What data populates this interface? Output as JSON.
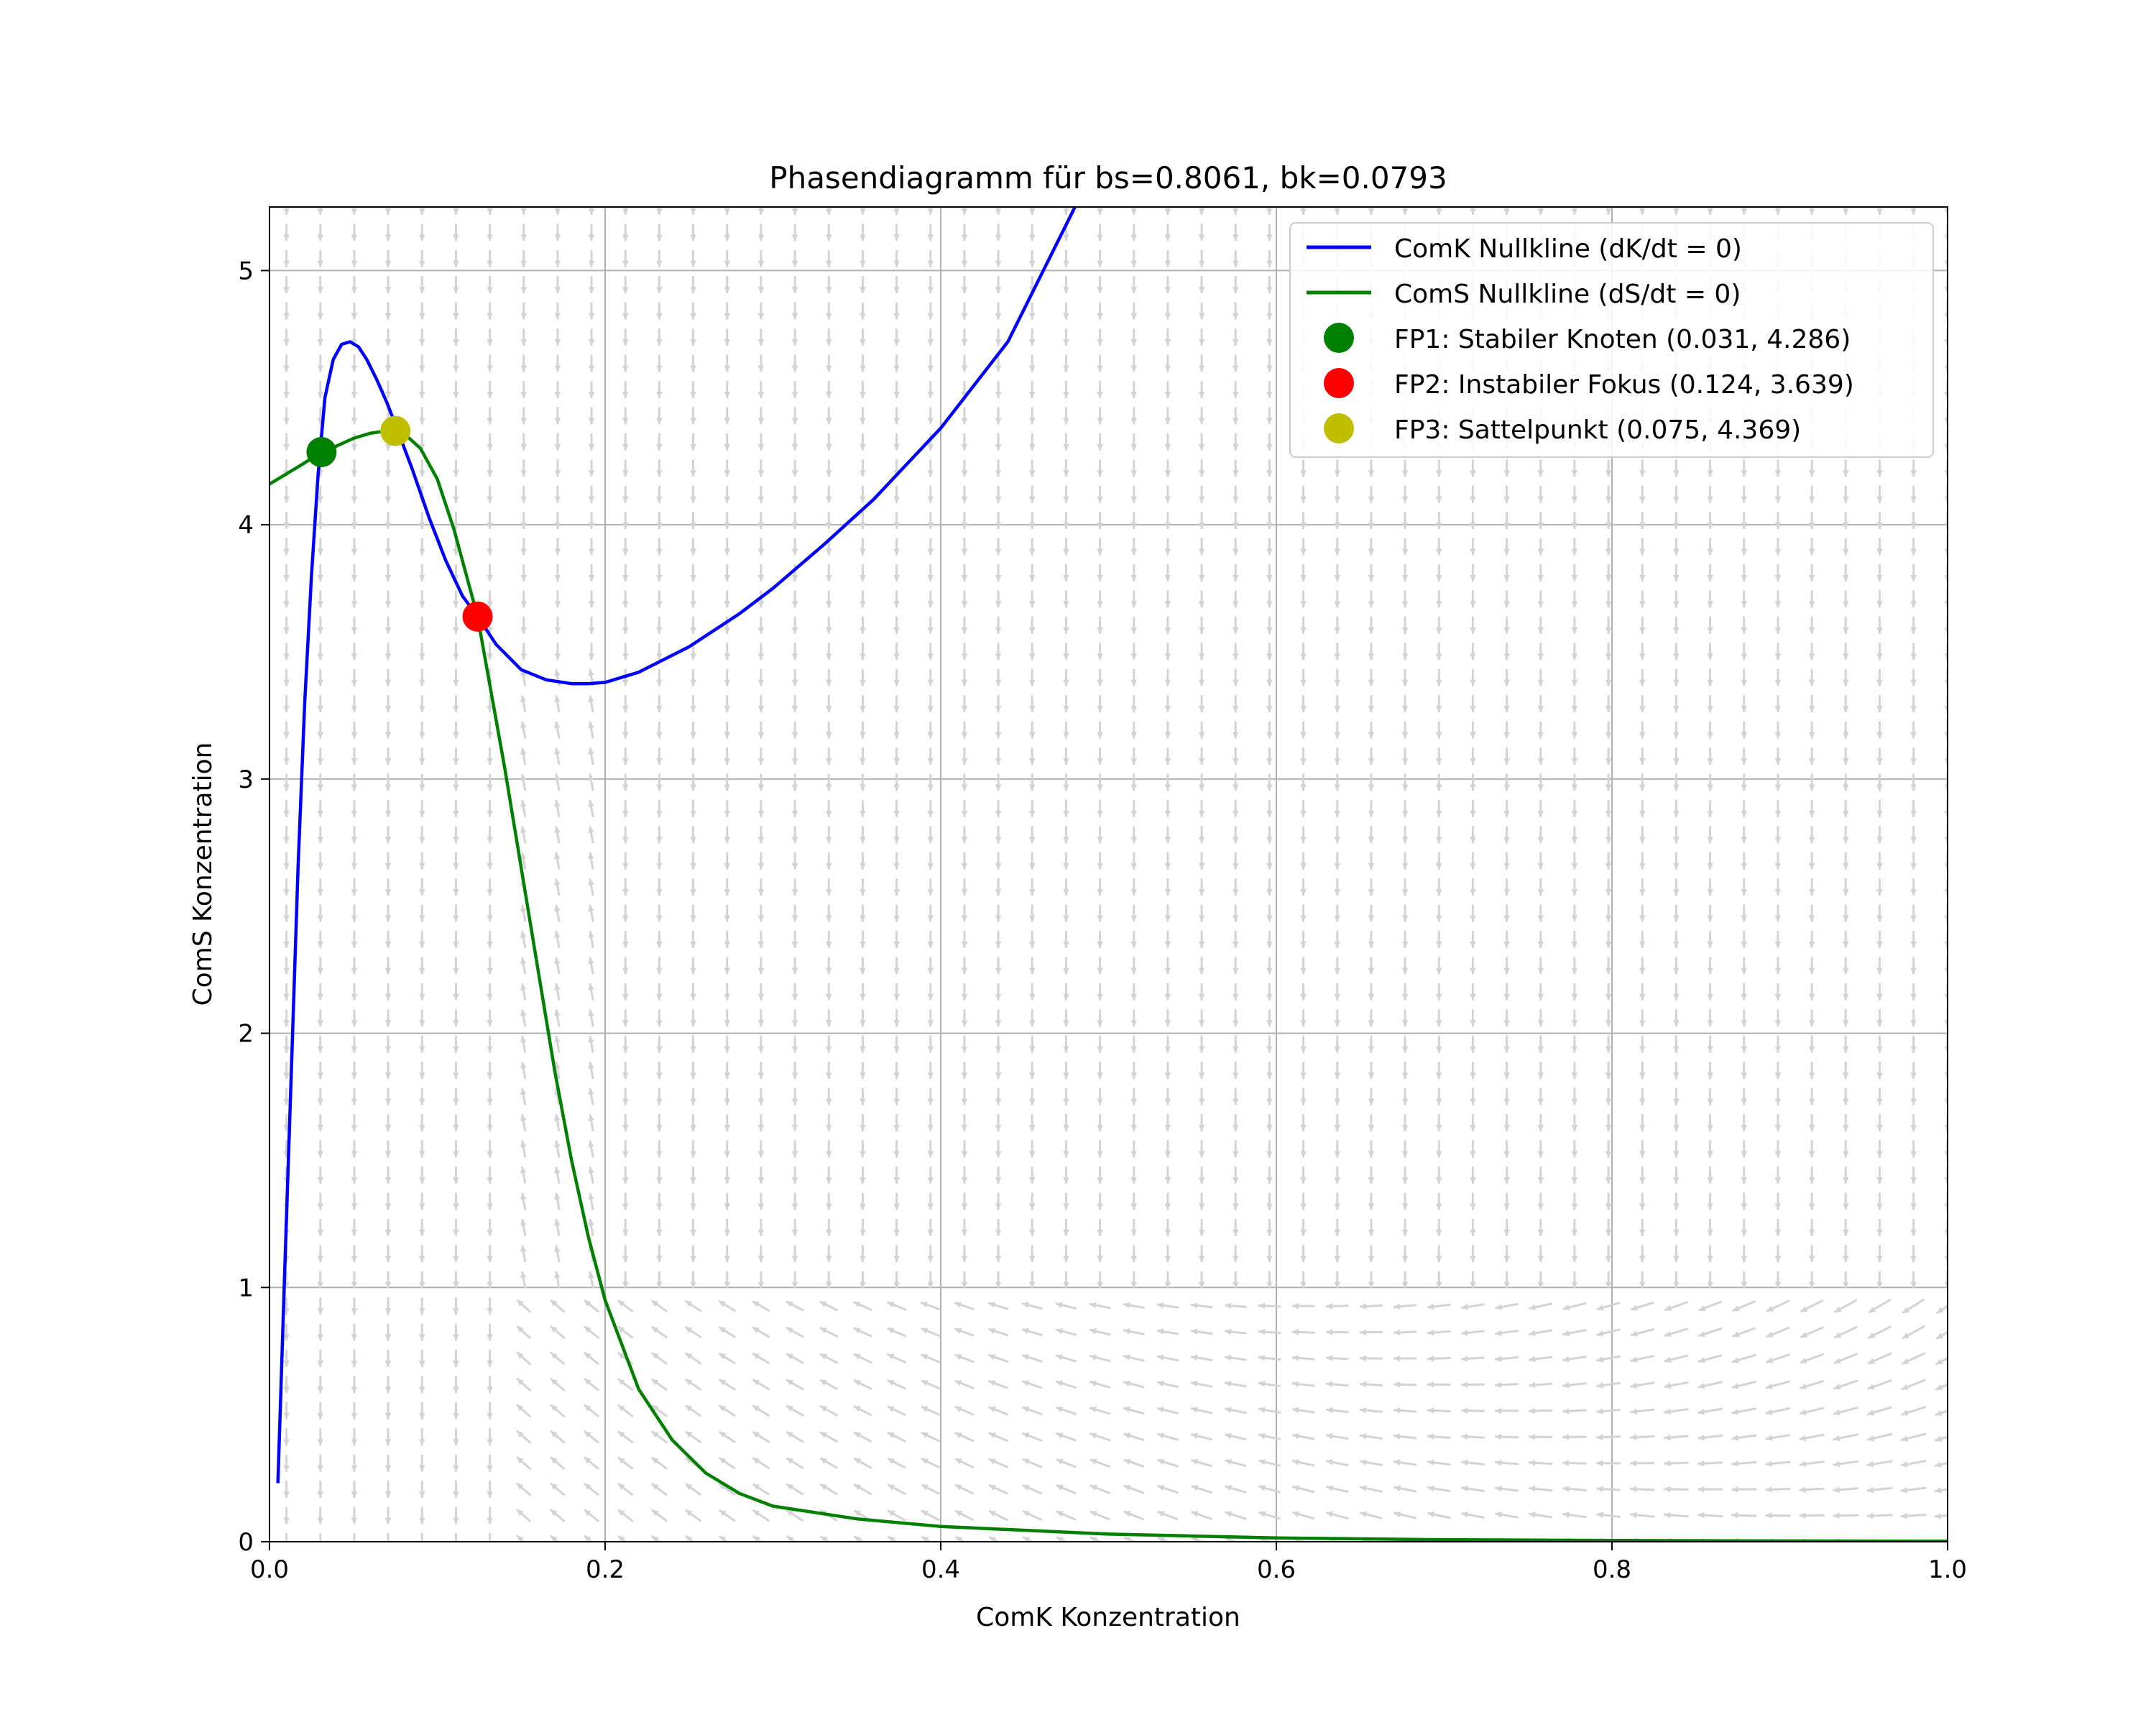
{
  "chart_data": {
    "type": "line",
    "title": "Phasendiagramm für bs=0.8061, bk=0.0793",
    "xlabel": "ComK Konzentration",
    "ylabel": "ComS Konzentration",
    "xlim": [
      0.0,
      1.0
    ],
    "ylim": [
      0,
      5.25
    ],
    "xticks": [
      "0.0",
      "0.2",
      "0.4",
      "0.6",
      "0.8",
      "1.0"
    ],
    "yticks": [
      "0",
      "1",
      "2",
      "3",
      "4",
      "5"
    ],
    "grid": true,
    "legend_position": "top-right",
    "series": [
      {
        "name": "ComK Nullkline (dK/dt = 0)",
        "color": "#0000ff",
        "kind": "line",
        "x": [
          0.005,
          0.009,
          0.013,
          0.017,
          0.021,
          0.025,
          0.029,
          0.033,
          0.038,
          0.043,
          0.048,
          0.053,
          0.058,
          0.064,
          0.07,
          0.077,
          0.085,
          0.095,
          0.105,
          0.115,
          0.124,
          0.135,
          0.15,
          0.165,
          0.18,
          0.19,
          0.2,
          0.22,
          0.25,
          0.28,
          0.3,
          0.33,
          0.36,
          0.4,
          0.44,
          0.48
        ],
        "y": [
          0.23,
          1.05,
          1.85,
          2.65,
          3.3,
          3.8,
          4.2,
          4.5,
          4.65,
          4.71,
          4.72,
          4.7,
          4.65,
          4.57,
          4.48,
          4.36,
          4.22,
          4.03,
          3.86,
          3.72,
          3.639,
          3.53,
          3.43,
          3.39,
          3.375,
          3.375,
          3.38,
          3.42,
          3.52,
          3.65,
          3.75,
          3.92,
          4.1,
          4.38,
          4.72,
          5.25
        ]
      },
      {
        "name": "ComS Nullkline (dS/dt = 0)",
        "color": "#008000",
        "kind": "line",
        "x": [
          0.0,
          0.01,
          0.02,
          0.031,
          0.04,
          0.05,
          0.06,
          0.07,
          0.075,
          0.08,
          0.09,
          0.1,
          0.11,
          0.124,
          0.14,
          0.15,
          0.16,
          0.17,
          0.18,
          0.19,
          0.2,
          0.22,
          0.24,
          0.26,
          0.28,
          0.3,
          0.35,
          0.4,
          0.5,
          0.6,
          0.7,
          0.8,
          0.9,
          1.0
        ],
        "y": [
          4.16,
          4.2,
          4.24,
          4.286,
          4.31,
          4.34,
          4.36,
          4.37,
          4.369,
          4.36,
          4.3,
          4.18,
          3.98,
          3.639,
          3.05,
          2.65,
          2.25,
          1.85,
          1.5,
          1.2,
          0.95,
          0.6,
          0.4,
          0.27,
          0.19,
          0.14,
          0.09,
          0.06,
          0.03,
          0.015,
          0.008,
          0.005,
          0.003,
          0.002
        ]
      },
      {
        "name": "FP1: Stabiler Knoten (0.031, 4.286)",
        "color": "#008000",
        "kind": "point",
        "x": [
          0.031
        ],
        "y": [
          4.286
        ]
      },
      {
        "name": "FP2: Instabiler Fokus (0.124, 3.639)",
        "color": "#ff0000",
        "kind": "point",
        "x": [
          0.124
        ],
        "y": [
          3.639
        ]
      },
      {
        "name": "FP3: Sattelpunkt (0.075, 4.369)",
        "color": "#bfbf00",
        "kind": "point",
        "x": [
          0.075
        ],
        "y": [
          4.369
        ]
      }
    ],
    "vector_field_color": "#d3d3d3"
  }
}
